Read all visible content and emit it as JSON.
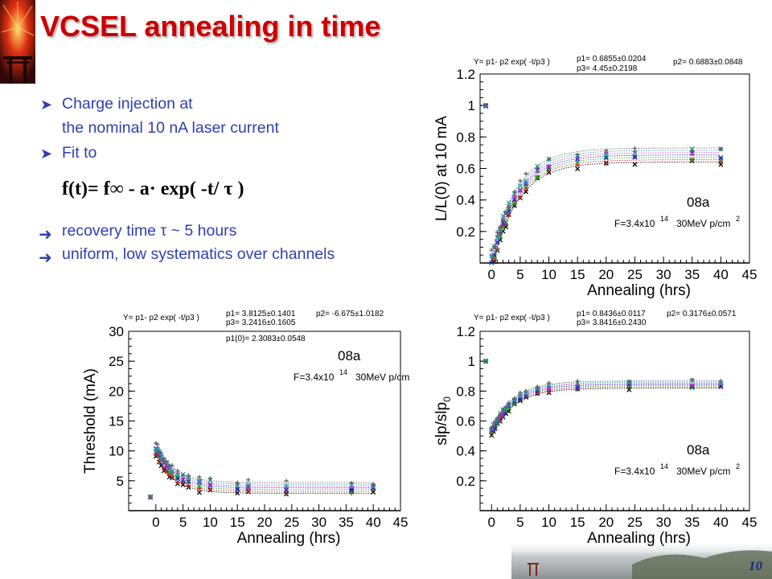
{
  "title": "VCSEL annealing in time",
  "bullets": [
    {
      "mark": "Ø",
      "lines": [
        "Charge injection at",
        "the nominal 10 nA laser current"
      ]
    },
    {
      "mark": "Ø",
      "lines": [
        "Fit to"
      ]
    }
  ],
  "formula": "f(t)= f∞ - a· exp( -t/ τ )",
  "results": [
    {
      "mark": "è",
      "text": "recovery time τ ~ 5 hours"
    },
    {
      "mark": "è",
      "text": "uniform, low systematics over channels"
    }
  ],
  "page_number": "10",
  "colors": {
    "title": "#cc0000",
    "text": "#2e3fb0",
    "slide_number": "#1a2a80"
  },
  "decor_icons": [
    "fireworks-torii-image",
    "harbor-landscape-image"
  ],
  "chart_data": [
    {
      "type": "scatter",
      "id": "light-output",
      "fit_function": "Y= p1- p2 exp( -t/p3 )",
      "params": [
        "p1= 0.6855±0.0204",
        "p2= 0.6883±0.0848",
        "p3= 4.45±0.2198"
      ],
      "sample": "08a",
      "fluence": "F=3.4x10",
      "fluence_exp": "14",
      "beam": "30MeV p/cm",
      "xlabel": "Annealing (hrs)",
      "ylabel": "L/L(0) at 10 mA",
      "xlim": [
        -2,
        45
      ],
      "ylim": [
        0,
        1.2
      ],
      "xticks": [
        0,
        5,
        10,
        15,
        20,
        25,
        30,
        35,
        40,
        45
      ],
      "yticks": [
        0.2,
        0.4,
        0.6,
        0.8,
        1,
        1.2
      ],
      "fit_model": {
        "p1": 0.6855,
        "p2": 0.6883,
        "p3": 4.45
      },
      "initial_value": 1.0,
      "x": [
        0,
        0.5,
        1,
        1.5,
        2,
        2.5,
        3,
        4,
        5,
        6,
        8,
        10,
        15,
        20,
        25,
        35,
        40
      ],
      "channels": 7,
      "spread": 0.045,
      "grid": false
    },
    {
      "type": "scatter",
      "id": "threshold",
      "fit_function": "Y= p1- p2 exp( -t/p3 )",
      "params": [
        "p1= 3.8125±0.1401",
        "p2= -6.675±1.0182",
        "p3= 3.2416±0.1605",
        "p1(0)= 2.3083±0.0548"
      ],
      "sample": "08a",
      "fluence": "F=3.4x10",
      "fluence_exp": "14",
      "beam": "30MeV p/cm",
      "xlabel": "Annealing (hrs)",
      "ylabel": "Threshold (mA)",
      "xlim": [
        -5,
        45
      ],
      "ylim": [
        0,
        30
      ],
      "xticks": [
        0,
        5,
        10,
        15,
        20,
        25,
        30,
        35,
        40,
        45
      ],
      "yticks": [
        5,
        10,
        15,
        20,
        25,
        30
      ],
      "fit_model": {
        "p1": 3.8125,
        "p2": -6.675,
        "p3": 3.2416
      },
      "initial_value": 2.3,
      "x": [
        0,
        0.3,
        0.6,
        1,
        1.5,
        2,
        2.5,
        3,
        4,
        5,
        6,
        8,
        10,
        15,
        17,
        24,
        36,
        40
      ],
      "channels": 7,
      "spread": 0.9,
      "grid": false
    },
    {
      "type": "scatter",
      "id": "slope",
      "fit_function": "Y= p1- p2 exp( -t/p3 )",
      "params": [
        "p1= 0.8436±0.0117",
        "p2= 0.3176±0.0571",
        "p3= 3.8416±0.2430"
      ],
      "sample": "08a",
      "fluence": "F=3.4x10",
      "fluence_exp": "14",
      "beam": "30MeV p/cm",
      "xlabel": "Annealing (hrs)",
      "ylabel": "slp/slp",
      "ylabel_sub": "0",
      "xlim": [
        -2,
        45
      ],
      "ylim": [
        0,
        1.2
      ],
      "xticks": [
        0,
        5,
        10,
        15,
        20,
        25,
        30,
        35,
        40,
        45
      ],
      "yticks": [
        0.2,
        0.4,
        0.6,
        0.8,
        1,
        1.2
      ],
      "fit_model": {
        "p1": 0.8436,
        "p2": 0.3176,
        "p3": 3.8416
      },
      "initial_value": 1.0,
      "x": [
        0,
        0.3,
        0.6,
        1,
        1.5,
        2,
        2.5,
        3,
        4,
        5,
        6,
        8,
        10,
        15,
        24,
        35,
        40
      ],
      "channels": 7,
      "spread": 0.025,
      "grid": false
    }
  ]
}
